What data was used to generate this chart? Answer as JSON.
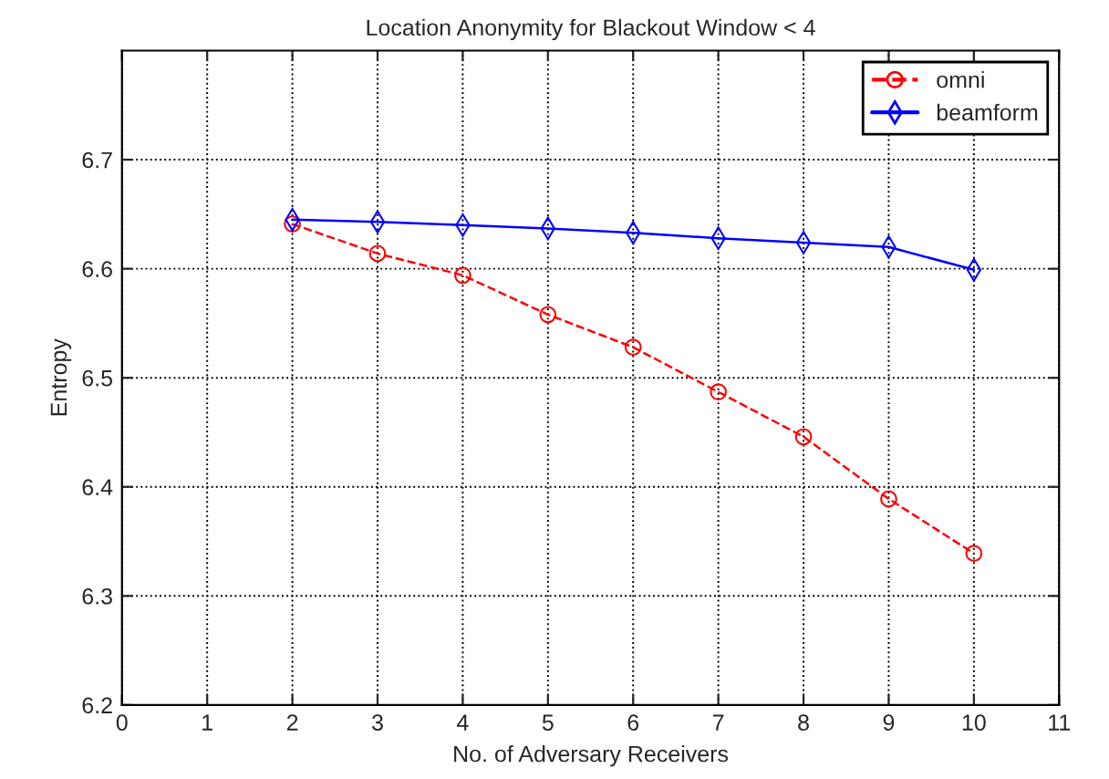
{
  "chart_data": {
    "type": "line",
    "title": "Location Anonymity for Blackout Window < 4",
    "xlabel": "No. of Adversary Receivers",
    "ylabel": "Entropy",
    "x": [
      2,
      3,
      4,
      5,
      6,
      7,
      8,
      9,
      10
    ],
    "series": [
      {
        "name": "omni",
        "color": "#ff0000",
        "marker": "circle",
        "line_style": "dashed",
        "values": [
          6.641,
          6.614,
          6.594,
          6.558,
          6.528,
          6.487,
          6.446,
          6.389,
          6.339
        ]
      },
      {
        "name": "beamform",
        "color": "#0000ff",
        "marker": "diamond",
        "line_style": "solid",
        "values": [
          6.645,
          6.643,
          6.64,
          6.637,
          6.633,
          6.628,
          6.624,
          6.62,
          6.599
        ]
      }
    ],
    "xlim": [
      0,
      11
    ],
    "xticks": [
      0,
      1,
      2,
      3,
      4,
      5,
      6,
      7,
      8,
      9,
      10,
      11
    ],
    "ylim": [
      6.2,
      6.8
    ],
    "yticks": [
      6.2,
      6.3,
      6.4,
      6.5,
      6.6,
      6.7
    ],
    "grid": true,
    "legend": "top right"
  }
}
